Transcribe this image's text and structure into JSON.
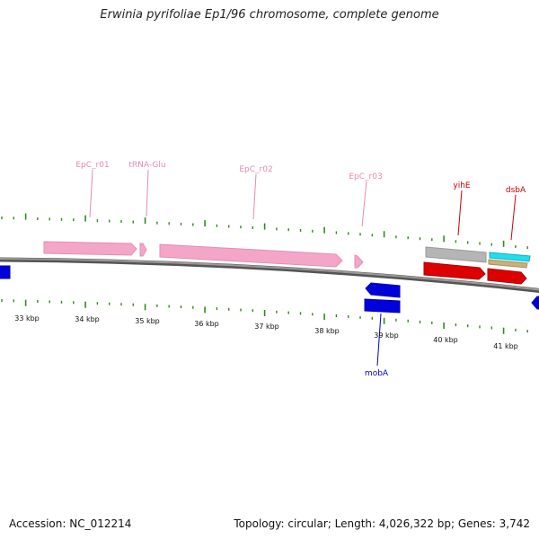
{
  "title": "Erwinia pyrifoliae Ep1/96 chromosome, complete genome",
  "footer": {
    "accession": "Accession: NC_012214",
    "topology": "Topology: circular; Length: 4,026,322 bp; Genes: 3,742"
  },
  "colors": {
    "backbone": "#777777",
    "tick": "#2f8a1f",
    "rrna": "#f4a6c8",
    "rrna_label": "#e58ab4",
    "gene_red": "#dd0000",
    "gene_blue": "#0000dd",
    "gene_gray": "#b5b5b5",
    "gene_cyan": "#22ddee",
    "gene_tan": "#c8b07a"
  },
  "scale_labels": [
    "33 kbp",
    "34 kbp",
    "35 kbp",
    "36 kbp",
    "37 kbp",
    "38 kbp",
    "39 kbp",
    "40 kbp",
    "41 kbp"
  ],
  "feature_labels": {
    "epc_r01": "EpC_r01",
    "trna_glu": "tRNA-Glu",
    "epc_r02": "EpC_r02",
    "epc_r03": "EpC_r03",
    "yihe": "yihE",
    "dsba": "dsbA",
    "moba": "mobA"
  }
}
